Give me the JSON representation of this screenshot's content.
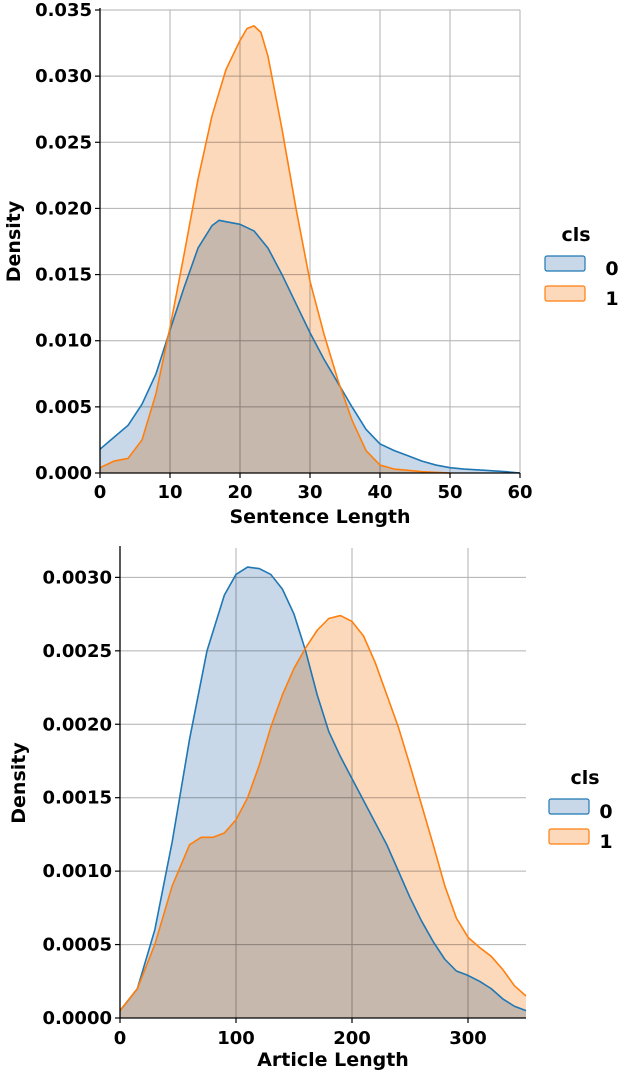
{
  "chart_data": [
    {
      "type": "area",
      "xlabel": "Sentence Length",
      "ylabel": "Density",
      "xlim": [
        0,
        60
      ],
      "ylim": [
        0,
        0.035
      ],
      "xticks": [
        "0",
        "10",
        "20",
        "30",
        "40",
        "50",
        "60"
      ],
      "xtick_values": [
        0,
        10,
        20,
        30,
        40,
        50,
        60
      ],
      "yticks": [
        "0.000",
        "0.005",
        "0.010",
        "0.015",
        "0.020",
        "0.025",
        "0.030",
        "0.035"
      ],
      "ytick_values": [
        0,
        0.005,
        0.01,
        0.015,
        0.02,
        0.025,
        0.03,
        0.035
      ],
      "grid": true,
      "legend": {
        "title": "cls",
        "placement": "right",
        "entries": [
          "0",
          "1"
        ]
      },
      "series": [
        {
          "name": "0",
          "color": "#1f77b4",
          "fill": "#c8d8e9",
          "points": [
            [
              0,
              0.0018
            ],
            [
              2,
              0.0027
            ],
            [
              4,
              0.0036
            ],
            [
              6,
              0.0052
            ],
            [
              8,
              0.0075
            ],
            [
              10,
              0.0108
            ],
            [
              12,
              0.014
            ],
            [
              14,
              0.017
            ],
            [
              16,
              0.0187
            ],
            [
              17,
              0.0191
            ],
            [
              18,
              0.019
            ],
            [
              20,
              0.0188
            ],
            [
              22,
              0.0183
            ],
            [
              24,
              0.017
            ],
            [
              26,
              0.015
            ],
            [
              28,
              0.0128
            ],
            [
              30,
              0.0106
            ],
            [
              32,
              0.0086
            ],
            [
              34,
              0.0068
            ],
            [
              36,
              0.005
            ],
            [
              38,
              0.0033
            ],
            [
              40,
              0.0022
            ],
            [
              42,
              0.0017
            ],
            [
              44,
              0.0013
            ],
            [
              46,
              0.0009
            ],
            [
              48,
              0.0006
            ],
            [
              50,
              0.0004
            ],
            [
              52,
              0.0003
            ],
            [
              55,
              0.0002
            ],
            [
              58,
              0.0001
            ],
            [
              60,
              0.0
            ]
          ]
        },
        {
          "name": "1",
          "color": "#ff7f0e",
          "fill": "#fdd9bc",
          "points": [
            [
              0,
              0.0004
            ],
            [
              2,
              0.0009
            ],
            [
              4,
              0.0011
            ],
            [
              6,
              0.0025
            ],
            [
              8,
              0.006
            ],
            [
              10,
              0.011
            ],
            [
              12,
              0.0165
            ],
            [
              14,
              0.0222
            ],
            [
              16,
              0.027
            ],
            [
              18,
              0.0305
            ],
            [
              20,
              0.0327
            ],
            [
              21,
              0.0336
            ],
            [
              22,
              0.0338
            ],
            [
              23,
              0.0333
            ],
            [
              24,
              0.0315
            ],
            [
              26,
              0.026
            ],
            [
              28,
              0.02
            ],
            [
              30,
              0.0145
            ],
            [
              32,
              0.0105
            ],
            [
              34,
              0.007
            ],
            [
              36,
              0.004
            ],
            [
              38,
              0.0017
            ],
            [
              40,
              0.0006
            ],
            [
              42,
              0.0003
            ],
            [
              44,
              0.0002
            ],
            [
              46,
              0.0001
            ],
            [
              50,
              0.0
            ]
          ]
        }
      ]
    },
    {
      "type": "area",
      "xlabel": "Article Length",
      "ylabel": "Density",
      "xlim": [
        0,
        350
      ],
      "ylim": [
        0,
        0.0032
      ],
      "xticks": [
        "0",
        "100",
        "200",
        "300"
      ],
      "xtick_values": [
        0,
        100,
        200,
        300
      ],
      "yticks": [
        "0.0000",
        "0.0005",
        "0.0010",
        "0.0015",
        "0.0020",
        "0.0025",
        "0.0030"
      ],
      "ytick_values": [
        0,
        0.0005,
        0.001,
        0.0015,
        0.002,
        0.0025,
        0.003
      ],
      "grid": true,
      "legend": {
        "title": "cls",
        "placement": "right",
        "entries": [
          "0",
          "1"
        ]
      },
      "series": [
        {
          "name": "0",
          "color": "#1f77b4",
          "fill": "#c8d8e9",
          "points": [
            [
              0,
              5e-05
            ],
            [
              15,
              0.0002
            ],
            [
              30,
              0.0006
            ],
            [
              45,
              0.0012
            ],
            [
              60,
              0.0019
            ],
            [
              75,
              0.0025
            ],
            [
              90,
              0.00288
            ],
            [
              100,
              0.00302
            ],
            [
              110,
              0.00307
            ],
            [
              120,
              0.00306
            ],
            [
              130,
              0.00302
            ],
            [
              140,
              0.00292
            ],
            [
              150,
              0.00275
            ],
            [
              160,
              0.0025
            ],
            [
              170,
              0.0022
            ],
            [
              180,
              0.00195
            ],
            [
              190,
              0.00178
            ],
            [
              200,
              0.00163
            ],
            [
              210,
              0.00148
            ],
            [
              220,
              0.00133
            ],
            [
              230,
              0.00118
            ],
            [
              240,
              0.001
            ],
            [
              250,
              0.00082
            ],
            [
              260,
              0.00066
            ],
            [
              270,
              0.00052
            ],
            [
              280,
              0.0004
            ],
            [
              290,
              0.00032
            ],
            [
              300,
              0.00029
            ],
            [
              310,
              0.00025
            ],
            [
              320,
              0.0002
            ],
            [
              330,
              0.00013
            ],
            [
              340,
              8e-05
            ],
            [
              350,
              5e-05
            ]
          ]
        },
        {
          "name": "1",
          "color": "#ff7f0e",
          "fill": "#fdd9bc",
          "points": [
            [
              0,
              5e-05
            ],
            [
              15,
              0.0002
            ],
            [
              30,
              0.0005
            ],
            [
              45,
              0.0009
            ],
            [
              60,
              0.00118
            ],
            [
              70,
              0.00123
            ],
            [
              80,
              0.00123
            ],
            [
              90,
              0.00126
            ],
            [
              100,
              0.00135
            ],
            [
              110,
              0.0015
            ],
            [
              120,
              0.00172
            ],
            [
              130,
              0.00198
            ],
            [
              140,
              0.0022
            ],
            [
              150,
              0.00238
            ],
            [
              160,
              0.00252
            ],
            [
              170,
              0.00264
            ],
            [
              180,
              0.00272
            ],
            [
              190,
              0.00274
            ],
            [
              200,
              0.0027
            ],
            [
              210,
              0.0026
            ],
            [
              220,
              0.00242
            ],
            [
              230,
              0.0022
            ],
            [
              240,
              0.00198
            ],
            [
              250,
              0.00172
            ],
            [
              260,
              0.00145
            ],
            [
              270,
              0.00118
            ],
            [
              280,
              0.0009
            ],
            [
              290,
              0.00068
            ],
            [
              300,
              0.00055
            ],
            [
              310,
              0.00048
            ],
            [
              320,
              0.00042
            ],
            [
              330,
              0.00033
            ],
            [
              340,
              0.00022
            ],
            [
              350,
              0.00015
            ]
          ]
        }
      ]
    }
  ]
}
